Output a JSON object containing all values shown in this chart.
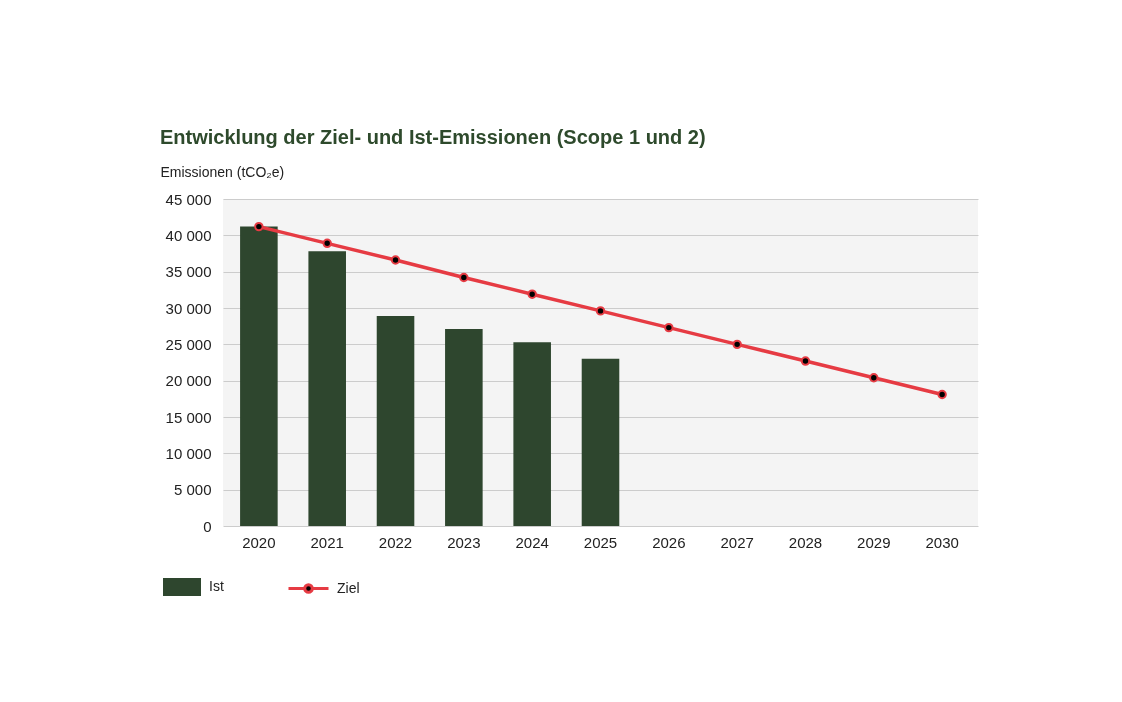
{
  "chart_data": {
    "type": "bar",
    "title": "Entwicklung der Ziel- und Ist-Emissionen (Scope 1 und 2)",
    "ylabel": "Emissionen (tCO₂e)",
    "categories": [
      "2020",
      "2021",
      "2022",
      "2023",
      "2024",
      "2025",
      "2026",
      "2027",
      "2028",
      "2029",
      "2030"
    ],
    "series": [
      {
        "name": "Ist",
        "color": "#2e462e",
        "values": [
          41200,
          37800,
          28900,
          27100,
          25300,
          23000,
          null,
          null,
          null,
          null,
          null
        ]
      },
      {
        "name": "Ziel",
        "type": "line",
        "color": "#e63b43",
        "marker": "circle",
        "line_style": "solid",
        "values": [
          41200,
          38900,
          36600,
          34200,
          31900,
          29600,
          27300,
          25000,
          22700,
          20400,
          18100
        ]
      }
    ],
    "ylim": [
      0,
      45000
    ],
    "yticks": [
      0,
      {
        "value": 5000,
        "label": "5 000"
      },
      {
        "value": 10000,
        "label": "10 000"
      },
      {
        "value": 15000,
        "label": "15 000"
      },
      {
        "value": 20000,
        "label": "20 000"
      },
      {
        "value": 25000,
        "label": "25 000"
      },
      {
        "value": 30000,
        "label": "30 000"
      },
      {
        "value": 35000,
        "label": "35 000"
      },
      {
        "value": 40000,
        "label": "40 000"
      },
      {
        "value": 45000,
        "label": "45 000"
      }
    ],
    "grid": "y",
    "legend": "bottom left"
  }
}
